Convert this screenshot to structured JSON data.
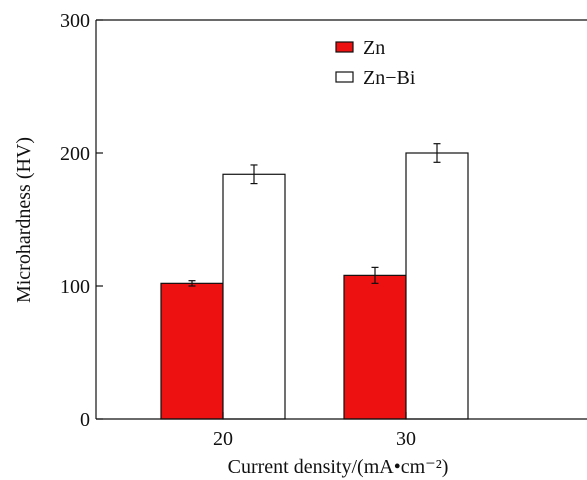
{
  "chart_data": {
    "type": "bar",
    "categories": [
      "20",
      "30"
    ],
    "series": [
      {
        "name": "Zn",
        "values": [
          102,
          108
        ],
        "errors": [
          2,
          6
        ],
        "color": "#ee1111"
      },
      {
        "name": "Zn−Bi",
        "values": [
          184,
          200
        ],
        "errors": [
          7,
          7
        ],
        "color": "#ffffff"
      }
    ],
    "xlabel": "Current density/(mA•cm⁻²)",
    "ylabel": "Microhardness (HV)",
    "ylim": [
      0,
      300
    ],
    "yticks": [
      0,
      100,
      200,
      300
    ],
    "legend_position": "top-center",
    "grid": false
  }
}
